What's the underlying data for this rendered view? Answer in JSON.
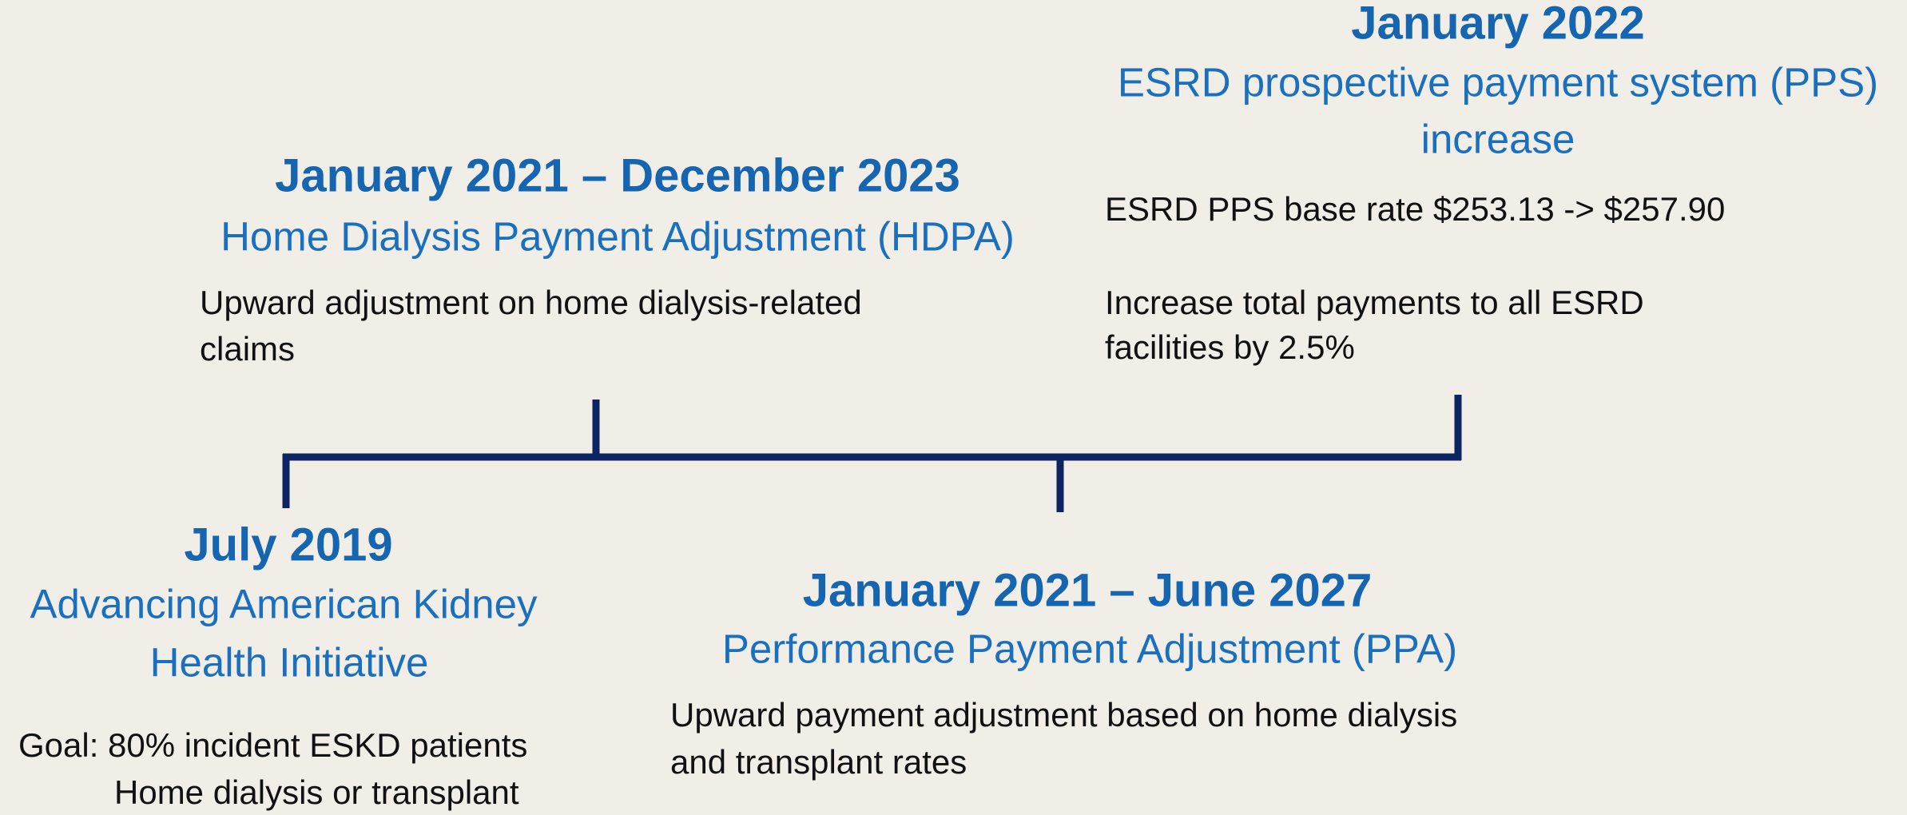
{
  "events": [
    {
      "date": "July 2019",
      "title": [
        "Advancing American Kidney",
        "Health Initiative"
      ],
      "description": [
        "Goal: 80% incident ESKD patients",
        "Home dialysis or transplant"
      ]
    },
    {
      "date": "January 2021 – December 2023",
      "title": [
        "Home Dialysis Payment Adjustment (HDPA)"
      ],
      "description": [
        "Upward adjustment on home dialysis-related",
        "claims"
      ]
    },
    {
      "date": "January 2021 – June 2027",
      "title": [
        "Performance Payment Adjustment (PPA)"
      ],
      "description": [
        "Upward payment adjustment based on home dialysis",
        "and transplant rates"
      ]
    },
    {
      "date": "January 2022",
      "title": [
        "ESRD prospective payment system (PPS)",
        "increase"
      ],
      "description": [
        "ESRD PPS base rate $253.13 -> $257.90",
        "",
        "Increase total payments to all ESRD",
        "facilities by 2.5%"
      ]
    }
  ]
}
